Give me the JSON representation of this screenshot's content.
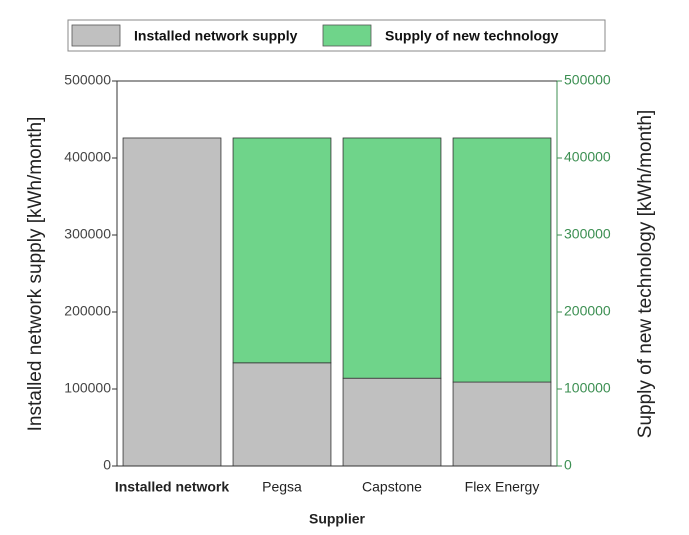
{
  "chart_data": {
    "type": "stacked-bar",
    "x_label": "Supplier",
    "y_label": "Installed network supply [kWh/month]",
    "y2_label": "Supply of new technology [kWh/month]",
    "categories": [
      "Installed network",
      "Pegsa",
      "Capstone",
      "Flex Energy"
    ],
    "series": [
      {
        "name": "Installed network supply",
        "color": "#c0c0c0",
        "values": [
          426000,
          134000,
          114000,
          109000
        ]
      },
      {
        "name": "Supply of new technology",
        "color": "#6fd48a",
        "axis": "y2",
        "values": [
          0,
          292000,
          312000,
          317000
        ]
      }
    ],
    "ylim": [
      0,
      500000
    ],
    "yticks": [
      0,
      100000,
      200000,
      300000,
      400000,
      500000
    ],
    "y2lim": [
      0,
      500000
    ],
    "y2ticks": [
      0,
      100000,
      200000,
      300000,
      400000,
      500000
    ],
    "legend": "top"
  }
}
